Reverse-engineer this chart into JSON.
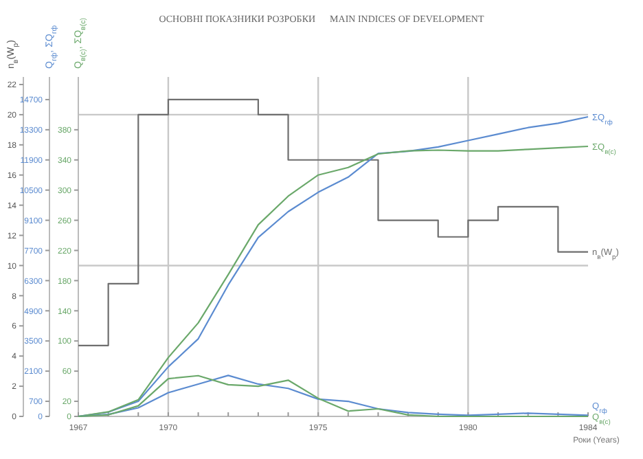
{
  "chart_data": {
    "type": "line",
    "title": "ОСНОВНІ ПОКАЗНИКИ РОЗРОБКИ      MAIN INDICES OF DEVELOPMENT",
    "xlabel": "Роки (Years)",
    "ylabel": "n$_{в}$(W$_{р}$)",
    "y2label": "Q$_{гф}$, ΣQ$_{гф}$",
    "y3label": "Q$_{в(с)}$, ΣQ$_{в(с)}$",
    "x": [
      1967,
      1968,
      1969,
      1970,
      1971,
      1972,
      1973,
      1974,
      1975,
      1976,
      1977,
      1978,
      1979,
      1980,
      1981,
      1982,
      1983,
      1984
    ],
    "xlim": [
      1967,
      1984
    ],
    "xticks": [
      1967,
      {
        "value": 1968,
        "label": null
      },
      {
        "value": 1969,
        "label": null
      },
      1970,
      {
        "value": 1971,
        "label": null
      },
      {
        "value": 1972,
        "label": null
      },
      {
        "value": 1973,
        "label": null
      },
      {
        "value": 1974,
        "label": null
      },
      1975,
      {
        "value": 1976,
        "label": null
      },
      {
        "value": 1977,
        "label": null
      },
      {
        "value": 1978,
        "label": null
      },
      {
        "value": 1979,
        "label": null
      },
      1980,
      {
        "value": 1981,
        "label": null
      },
      {
        "value": 1982,
        "label": null
      },
      {
        "value": 1983,
        "label": null
      },
      1984
    ],
    "ylim": [
      0,
      22.5
    ],
    "yticks": [
      0,
      2,
      4,
      6,
      8,
      10,
      12,
      14,
      16,
      18,
      20,
      22
    ],
    "y2lim": [
      0,
      15750
    ],
    "y2ticks": [
      0,
      700,
      2100,
      3500,
      4900,
      6300,
      7700,
      9100,
      10500,
      11900,
      13300,
      14700
    ],
    "y3lim": [
      0,
      450
    ],
    "y3ticks": [
      0,
      20,
      60,
      100,
      140,
      180,
      220,
      260,
      300,
      340,
      380
    ],
    "ref_lines": [
      {
        "axis": "y",
        "value": 10,
        "color": "#c8c8c8"
      },
      {
        "axis": "y",
        "value": 20,
        "color": "#c8c8c8"
      },
      {
        "axis": "x",
        "value": 1970,
        "color": "#c8c8c8"
      },
      {
        "axis": "x",
        "value": 1975,
        "color": "#c8c8c8"
      },
      {
        "axis": "x",
        "value": 1980,
        "color": "#c8c8c8"
      }
    ],
    "series": [
      {
        "name": "n$_{в}$(W$_{р}$)",
        "type": "step",
        "color": "#6e6e6e",
        "values": [
          4.7,
          8.8,
          20,
          21,
          21,
          21,
          20,
          17,
          17,
          17,
          13,
          13,
          11.9,
          13,
          13.9,
          13.9,
          10.9,
          10.9
        ]
      },
      {
        "name": "ΣQ$_{гф}$",
        "axis": "y2",
        "color": "#5b8bd0",
        "values": [
          0,
          200,
          700,
          2300,
          3600,
          6100,
          8300,
          9500,
          10400,
          11100,
          12200,
          12300,
          12500,
          12800,
          13100,
          13400,
          13600,
          13900
        ]
      },
      {
        "name": "ΣQ$_{в(с)}$",
        "axis": "y3",
        "color": "#6aa86a",
        "values": [
          0,
          6,
          22,
          78,
          124,
          188,
          254,
          292,
          320,
          330,
          348,
          352,
          353,
          352,
          352,
          354,
          356,
          358
        ]
      },
      {
        "name": "Q$_{гф}$",
        "axis": "y2",
        "color": "#5b8bd0",
        "values": [
          0,
          90,
          400,
          1100,
          1500,
          1900,
          1500,
          1300,
          800,
          700,
          350,
          180,
          100,
          50,
          100,
          150,
          100,
          50
        ]
      },
      {
        "name": "Q$_{в(с)}$",
        "axis": "y3",
        "color": "#6aa86a",
        "values": [
          0,
          2,
          14,
          50,
          54,
          42,
          40,
          48,
          24,
          7,
          10,
          2,
          0,
          0,
          0,
          0,
          0,
          0
        ]
      }
    ]
  }
}
